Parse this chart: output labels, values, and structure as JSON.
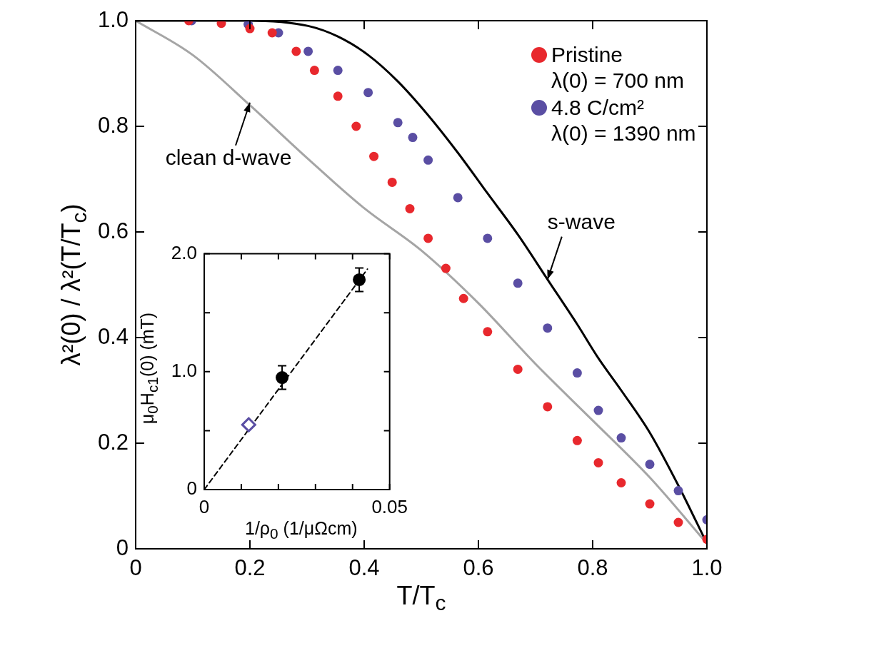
{
  "chart_data": [
    {
      "type": "scatter",
      "xlabel": "T/T$_{c}$",
      "ylabel": "λ²(0) / λ²(T/T$_{c}$)",
      "xlim": [
        0,
        1
      ],
      "ylim": [
        0,
        1
      ],
      "xticks": [
        0,
        0.2,
        0.4,
        0.6,
        0.8,
        {
          "value": 1,
          "label": "1.0"
        }
      ],
      "yticks": [
        0,
        0.2,
        0.4,
        0.6,
        0.8,
        {
          "value": 1,
          "label": "1.0"
        }
      ],
      "legend": "top right",
      "series": [
        {
          "type": "line",
          "color": "#000000",
          "x": [
            0,
            0.1,
            0.197,
            0.302,
            0.354,
            0.407,
            0.459,
            0.512,
            0.564,
            0.616,
            0.669,
            0.721,
            0.773,
            0.81,
            0.85,
            0.9,
            0.95,
            1.0
          ],
          "values": [
            1.0,
            1.0,
            1.0,
            0.99,
            0.97,
            0.935,
            0.885,
            0.821,
            0.75,
            0.673,
            0.595,
            0.51,
            0.425,
            0.361,
            0.3,
            0.22,
            0.12,
            0.01
          ]
        },
        {
          "type": "line",
          "color": "#a5a5a5",
          "x": [
            0,
            0.1,
            0.2,
            0.3,
            0.4,
            0.5,
            0.6,
            0.7,
            0.8,
            0.9,
            1.0
          ],
          "values": [
            1.0,
            0.935,
            0.84,
            0.74,
            0.645,
            0.565,
            0.465,
            0.35,
            0.243,
            0.135,
            0.01
          ]
        },
        {
          "name": "Pristine\nλ(0) = 700 nm",
          "color": "#e8282d",
          "marker": "circle",
          "x": [
            0.093,
            0.15,
            0.2,
            0.239,
            0.281,
            0.313,
            0.354,
            0.386,
            0.417,
            0.449,
            0.48,
            0.512,
            0.543,
            0.574,
            0.616,
            0.669,
            0.721,
            0.773,
            0.81,
            0.85,
            0.9,
            0.95,
            1.0
          ],
          "values": [
            1.0,
            0.995,
            0.985,
            0.977,
            0.942,
            0.906,
            0.857,
            0.8,
            0.743,
            0.694,
            0.644,
            0.588,
            0.531,
            0.474,
            0.411,
            0.34,
            0.269,
            0.205,
            0.163,
            0.125,
            0.085,
            0.05,
            0.018
          ]
        },
        {
          "name": "4.8 C/cm²\nλ(0) = 1390 nm",
          "color": "#5a4ea3",
          "marker": "circle",
          "x": [
            0.098,
            0.197,
            0.25,
            0.302,
            0.354,
            0.407,
            0.459,
            0.485,
            0.512,
            0.564,
            0.616,
            0.669,
            0.721,
            0.773,
            0.81,
            0.85,
            0.9,
            0.95,
            1.0
          ],
          "values": [
            1.0,
            0.993,
            0.977,
            0.942,
            0.906,
            0.864,
            0.807,
            0.779,
            0.736,
            0.665,
            0.588,
            0.503,
            0.418,
            0.333,
            0.262,
            0.21,
            0.16,
            0.11,
            0.055
          ]
        }
      ],
      "annotations": [
        {
          "text": "clean d-wave",
          "x": 0.2,
          "y": 0.845
        },
        {
          "text": "s-wave",
          "x": 0.721,
          "y": 0.51
        }
      ]
    },
    {
      "type": "scatter",
      "xlabel": "1/ρ$_{0}$ (1/μΩcm)",
      "ylabel": "μ$_{0}$H$_{c1}$(0) (mT)",
      "xlim": [
        0,
        0.05
      ],
      "ylim": [
        0,
        2
      ],
      "xticks": [
        0,
        {
          "value": 0.01,
          "label": null
        },
        {
          "value": 0.02,
          "label": null
        },
        {
          "value": 0.03,
          "label": null
        },
        {
          "value": 0.04,
          "label": null
        },
        0.05
      ],
      "yticks": [
        0,
        {
          "value": 0.5,
          "label": null
        },
        {
          "value": 1,
          "label": "1.0"
        },
        {
          "value": 1.5,
          "label": null
        },
        {
          "value": 2,
          "label": "2.0"
        }
      ],
      "series": [
        {
          "type": "line",
          "color": "#000000",
          "line_style": "dashed",
          "x": [
            0,
            0.044
          ],
          "values": [
            0,
            1.87
          ]
        },
        {
          "color": "#000000",
          "marker": "circle",
          "x": [
            0.021,
            0.0418
          ],
          "values": [
            0.95,
            1.78
          ],
          "errors": [
            0.1,
            0.1
          ]
        },
        {
          "color": "#5a4ea3",
          "marker": "diamond",
          "x": [
            0.012
          ],
          "values": [
            0.55
          ]
        }
      ]
    }
  ]
}
